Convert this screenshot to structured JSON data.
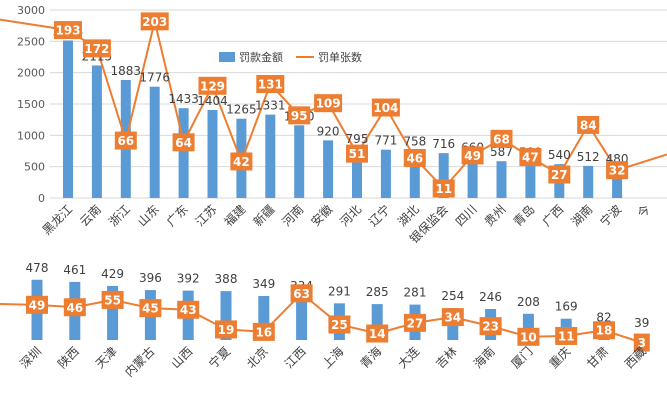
{
  "colors": {
    "bar": "#5b9bd5",
    "line": "#ed7d31",
    "grid": "#d9d9d9",
    "label_box": "#ed7d31"
  },
  "legend": {
    "bar_name": "罚款金额",
    "line_name": "罚单张数"
  },
  "chart_data": [
    {
      "type": "bar",
      "categories": [
        "黑龙江",
        "云南",
        "浙江",
        "山东",
        "广东",
        "江苏",
        "福建",
        "新疆",
        "河南",
        "安徽",
        "河北",
        "辽宁",
        "湖北",
        "银保监会",
        "四川",
        "贵州",
        "青岛",
        "广西",
        "湖南",
        "宁波",
        "今"
      ],
      "series": [
        {
          "name": "罚款金额",
          "type": "bar",
          "values": [
            2514,
            2115,
            1883,
            1776,
            1433,
            1404,
            1265,
            1331,
            1160,
            920,
            795,
            771,
            758,
            716,
            660,
            587,
            580,
            540,
            512,
            480,
            null
          ]
        },
        {
          "name": "罚单张数",
          "type": "line",
          "values": [
            193,
            172,
            66,
            203,
            64,
            129,
            42,
            131,
            95,
            109,
            51,
            104,
            46,
            11,
            49,
            68,
            47,
            27,
            84,
            32,
            null
          ]
        }
      ],
      "ylim": [
        0,
        3000
      ],
      "yticks": [
        0,
        500,
        1000,
        1500,
        2000,
        2500,
        3000
      ],
      "legend_position": "top-center",
      "grid": true
    },
    {
      "type": "bar",
      "categories": [
        "深圳",
        "陕西",
        "天津",
        "内蒙古",
        "山西",
        "宁夏",
        "北京",
        "江西",
        "上海",
        "青海",
        "大连",
        "吉林",
        "海南",
        "厦门",
        "重庆",
        "甘肃",
        "西藏"
      ],
      "series": [
        {
          "name": "罚款金额",
          "type": "bar",
          "values": [
            478,
            461,
            429,
            396,
            392,
            388,
            349,
            334,
            291,
            285,
            281,
            254,
            246,
            208,
            169,
            82,
            39
          ]
        },
        {
          "name": "罚单张数",
          "type": "line",
          "values": [
            49,
            46,
            55,
            45,
            43,
            19,
            16,
            63,
            25,
            14,
            27,
            34,
            23,
            10,
            11,
            18,
            3
          ]
        }
      ],
      "grid": false
    }
  ]
}
